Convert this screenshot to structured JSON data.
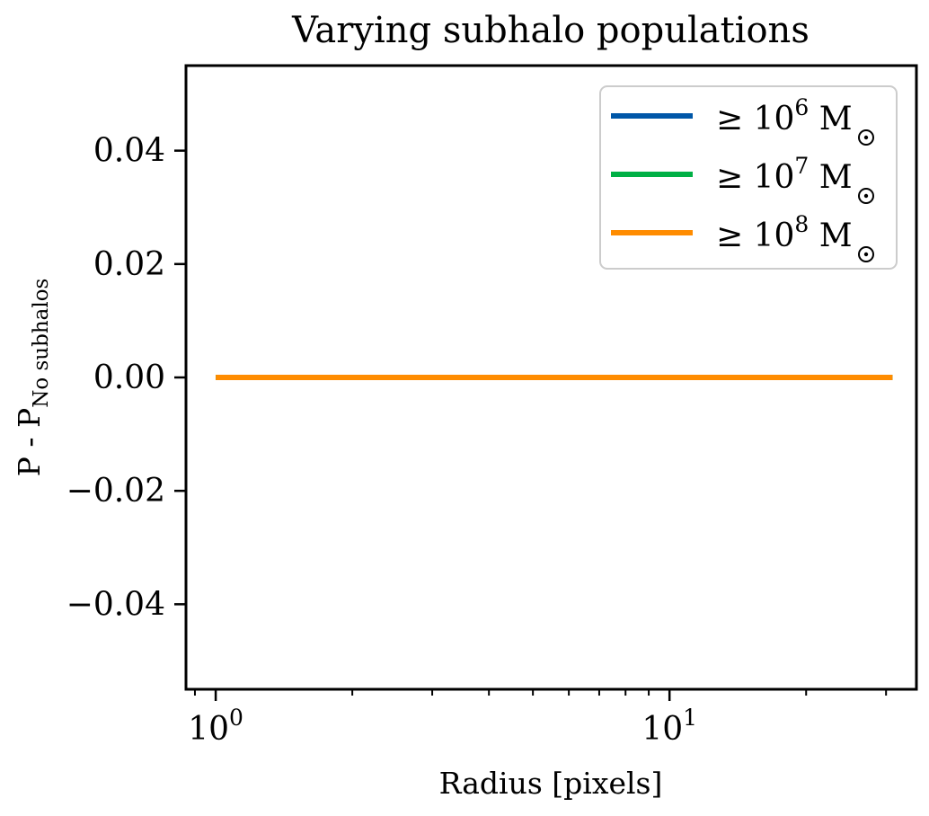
{
  "chart_data": {
    "type": "line",
    "title": "Varying subhalo populations",
    "xlabel": "Radius [pixels]",
    "ylabel_main": "P - P",
    "ylabel_sub": "No subhalos",
    "xscale": "log",
    "xlim": [
      0.86,
      35
    ],
    "ylim": [
      -0.055,
      0.055
    ],
    "x_major_ticks": [
      {
        "value": 1,
        "base": "10",
        "exp": "0"
      },
      {
        "value": 10,
        "base": "10",
        "exp": "1"
      }
    ],
    "y_ticks": [
      {
        "value": 0.04,
        "label": "0.04"
      },
      {
        "value": 0.02,
        "label": "0.02"
      },
      {
        "value": 0.0,
        "label": "0.00"
      },
      {
        "value": -0.02,
        "label": "−0.02"
      },
      {
        "value": -0.04,
        "label": "−0.04"
      }
    ],
    "grid": false,
    "legend_position": "top-right",
    "series": [
      {
        "name_prefix": "≥ 10",
        "name_exp": "6",
        "name_unit": "M",
        "color": "#0057a8",
        "x": [
          1,
          31
        ],
        "y": [
          0.0,
          0.0
        ]
      },
      {
        "name_prefix": "≥ 10",
        "name_exp": "7",
        "name_unit": "M",
        "color": "#00b045",
        "x": [
          1,
          31
        ],
        "y": [
          0.0,
          0.0
        ]
      },
      {
        "name_prefix": "≥ 10",
        "name_exp": "8",
        "name_unit": "M",
        "color": "#ff8c00",
        "x": [
          1,
          31
        ],
        "y": [
          0.0,
          0.0
        ]
      }
    ]
  }
}
